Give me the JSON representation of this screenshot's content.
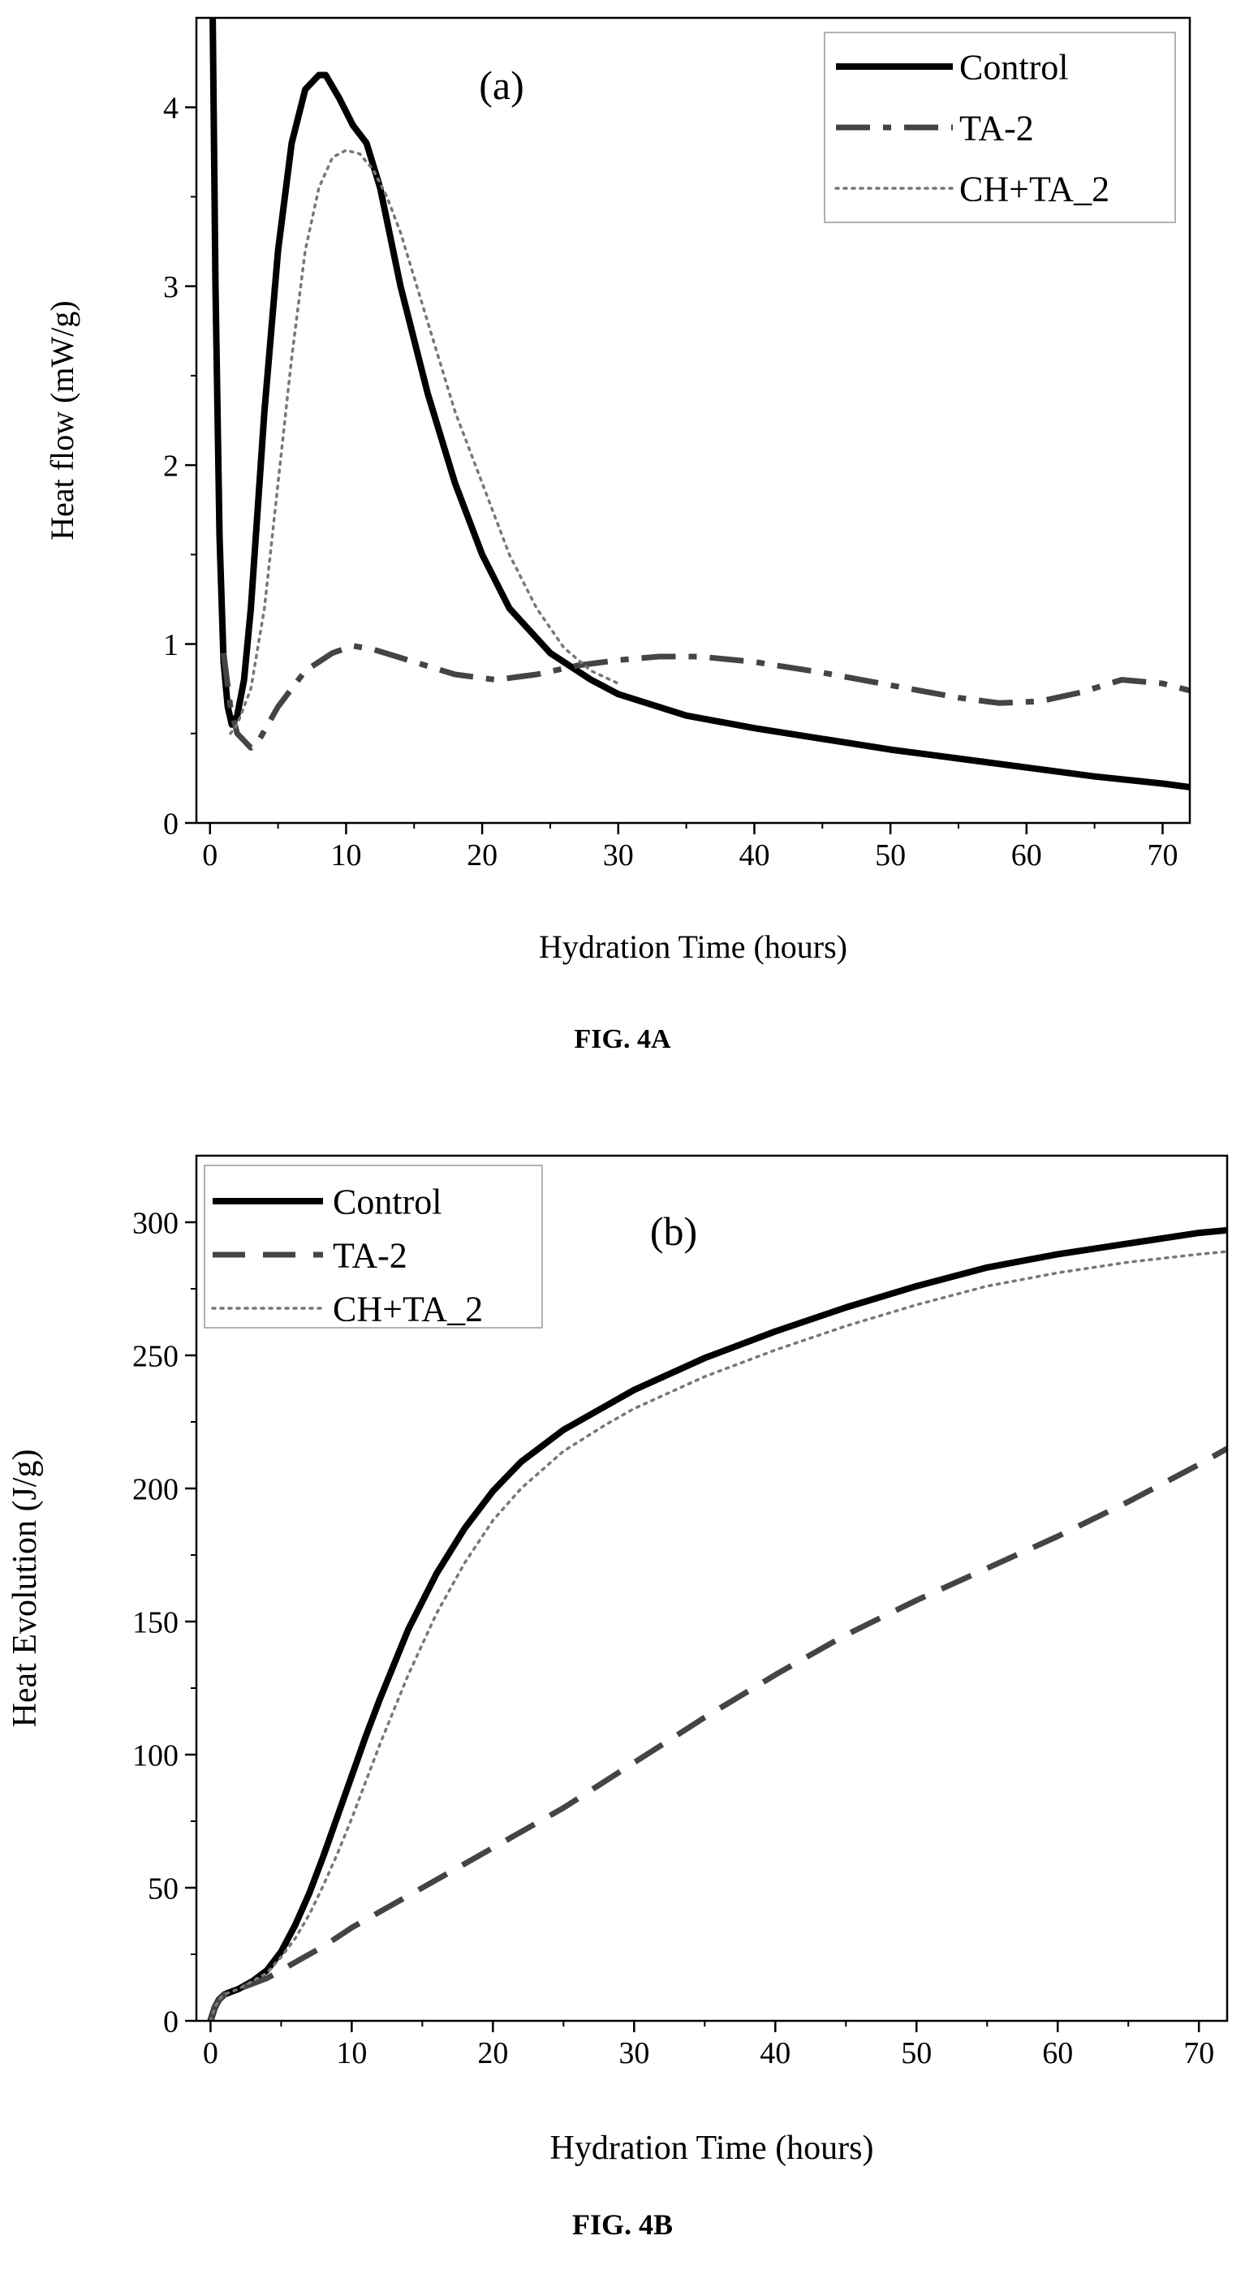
{
  "chart_data": [
    {
      "type": "line",
      "panel_label": "(a)",
      "caption": "FIG. 4A",
      "xlabel": "Hydration Time (hours)",
      "ylabel": "Heat flow (mW/g)",
      "xlim": [
        -1,
        72
      ],
      "ylim": [
        0,
        4.5
      ],
      "xticks": [
        0,
        10,
        20,
        30,
        40,
        50,
        60,
        70
      ],
      "yticks": [
        0,
        1,
        2,
        3,
        4
      ],
      "legend_position": "top-right",
      "grid": false,
      "series": [
        {
          "name": "Control",
          "style": "solid",
          "color": "#000000",
          "x": [
            0.2,
            0.4,
            0.7,
            1.0,
            1.3,
            1.6,
            2.0,
            2.5,
            3.0,
            4.0,
            5.0,
            6.0,
            7.0,
            8.0,
            8.5,
            9.5,
            10.5,
            11.5,
            12.5,
            14.0,
            16.0,
            18.0,
            20.0,
            22.0,
            25.0,
            28.0,
            30.0,
            35.0,
            40.0,
            45.0,
            50.0,
            55.0,
            60.0,
            65.0,
            70.0,
            72.0
          ],
          "y": [
            4.5,
            3.0,
            1.6,
            0.9,
            0.65,
            0.55,
            0.6,
            0.8,
            1.2,
            2.3,
            3.2,
            3.8,
            4.1,
            4.18,
            4.18,
            4.05,
            3.9,
            3.8,
            3.55,
            3.0,
            2.4,
            1.9,
            1.5,
            1.2,
            0.95,
            0.8,
            0.72,
            0.6,
            0.53,
            0.47,
            0.41,
            0.36,
            0.31,
            0.26,
            0.22,
            0.2
          ]
        },
        {
          "name": "TA-2",
          "style": "dash-dot",
          "color": "#444444",
          "x": [
            1.0,
            1.5,
            2.0,
            3.0,
            3.5,
            5.0,
            7.0,
            9.0,
            10.5,
            12.0,
            15.0,
            18.0,
            21.0,
            24.0,
            27.0,
            30.0,
            33.0,
            36.0,
            40.0,
            45.0,
            50.0,
            55.0,
            58.0,
            61.0,
            64.0,
            67.0,
            70.0,
            72.0
          ],
          "y": [
            0.95,
            0.65,
            0.5,
            0.42,
            0.45,
            0.65,
            0.85,
            0.95,
            0.99,
            0.97,
            0.9,
            0.83,
            0.8,
            0.83,
            0.88,
            0.91,
            0.93,
            0.93,
            0.9,
            0.84,
            0.77,
            0.7,
            0.67,
            0.68,
            0.73,
            0.8,
            0.78,
            0.74
          ]
        },
        {
          "name": "CH+TA_2",
          "style": "dotted",
          "color": "#777777",
          "x": [
            1.5,
            2.0,
            3.0,
            4.0,
            5.0,
            6.0,
            7.0,
            8.0,
            9.0,
            10.0,
            11.0,
            12.0,
            13.0,
            14.0,
            16.0,
            18.0,
            20.0,
            22.0,
            24.0,
            26.0,
            28.0,
            30.0
          ],
          "y": [
            0.5,
            0.55,
            0.75,
            1.2,
            1.9,
            2.6,
            3.2,
            3.55,
            3.72,
            3.76,
            3.74,
            3.65,
            3.5,
            3.3,
            2.8,
            2.3,
            1.9,
            1.5,
            1.2,
            0.98,
            0.85,
            0.78
          ]
        }
      ]
    },
    {
      "type": "line",
      "panel_label": "(b)",
      "caption": "FIG. 4B",
      "xlabel": "Hydration Time (hours)",
      "ylabel": "Heat Evolution (J/g)",
      "xlim": [
        -1,
        72
      ],
      "ylim": [
        0,
        325
      ],
      "xticks": [
        0,
        10,
        20,
        30,
        40,
        50,
        60,
        70
      ],
      "yticks": [
        0,
        50,
        100,
        150,
        200,
        250,
        300
      ],
      "legend_position": "top-left",
      "grid": false,
      "series": [
        {
          "name": "Control",
          "style": "solid",
          "color": "#000000",
          "x": [
            0,
            0.3,
            0.6,
            1.0,
            2.0,
            3.0,
            4.0,
            5.0,
            6.0,
            7.0,
            8.0,
            9.0,
            10.0,
            11.0,
            12.0,
            14.0,
            16.0,
            18.0,
            20.0,
            22.0,
            25.0,
            28.0,
            30.0,
            35.0,
            40.0,
            45.0,
            50.0,
            55.0,
            60.0,
            65.0,
            70.0,
            72.0
          ],
          "y": [
            0,
            5,
            8,
            10,
            12,
            15,
            19,
            26,
            36,
            48,
            62,
            77,
            92,
            107,
            121,
            147,
            168,
            185,
            199,
            210,
            222,
            231,
            237,
            249,
            259,
            268,
            276,
            283,
            288,
            292,
            296,
            297
          ]
        },
        {
          "name": "TA-2",
          "style": "dashed",
          "color": "#444444",
          "x": [
            0,
            0.3,
            0.6,
            1.0,
            2.0,
            3.0,
            4.0,
            5.0,
            6.0,
            8.0,
            10.0,
            15.0,
            20.0,
            25.0,
            30.0,
            35.0,
            40.0,
            45.0,
            50.0,
            55.0,
            60.0,
            65.0,
            70.0,
            72.0
          ],
          "y": [
            0,
            5,
            8,
            10,
            12,
            14,
            16,
            19,
            22,
            28,
            35,
            50,
            65,
            80,
            97,
            114,
            130,
            145,
            158,
            170,
            182,
            195,
            209,
            215
          ]
        },
        {
          "name": "CH+TA_2",
          "style": "dotted",
          "color": "#777777",
          "x": [
            0,
            0.3,
            0.6,
            1.0,
            2.0,
            3.0,
            4.0,
            5.0,
            6.0,
            7.0,
            8.0,
            9.0,
            10.0,
            11.0,
            12.0,
            14.0,
            16.0,
            18.0,
            20.0,
            22.0,
            25.0,
            28.0,
            30.0,
            35.0,
            40.0,
            45.0,
            50.0,
            55.0,
            60.0,
            65.0,
            70.0,
            72.0
          ],
          "y": [
            0,
            5,
            8,
            10,
            12,
            15,
            18,
            24,
            31,
            40,
            51,
            63,
            76,
            90,
            104,
            130,
            153,
            172,
            188,
            200,
            214,
            224,
            230,
            242,
            252,
            261,
            269,
            276,
            281,
            285,
            288,
            289
          ]
        }
      ]
    }
  ]
}
